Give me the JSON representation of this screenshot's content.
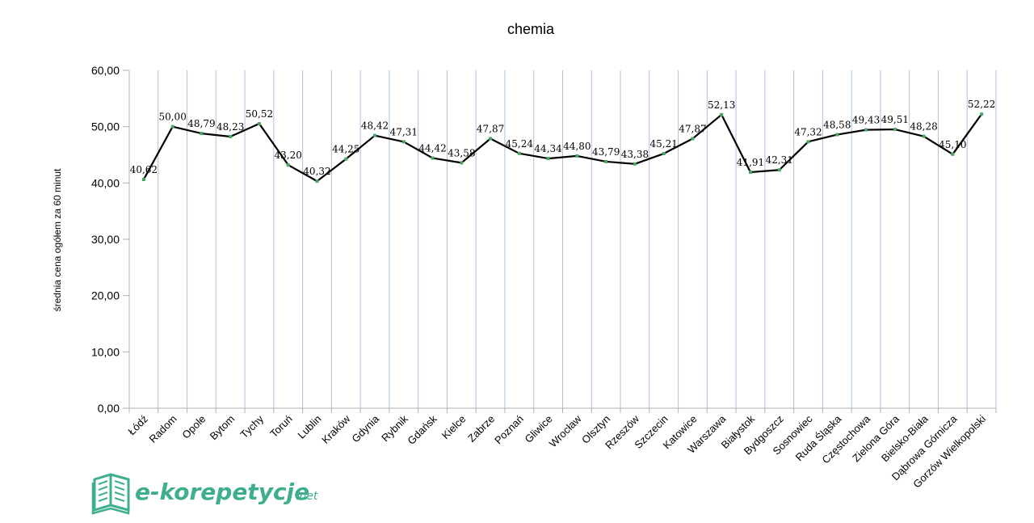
{
  "chart_data": {
    "type": "line",
    "title": "chemia",
    "ylabel": "średnia cena ogółem za 60 minut",
    "xlabel": "",
    "ylim": [
      0,
      60
    ],
    "yticks": [
      "0,00",
      "10,00",
      "20,00",
      "30,00",
      "40,00",
      "50,00",
      "60,00"
    ],
    "categories": [
      "Łódź",
      "Radom",
      "Opole",
      "Bytom",
      "Tychy",
      "Toruń",
      "Lublin",
      "Kraków",
      "Gdynia",
      "Rybnik",
      "Gdańsk",
      "Kielce",
      "Zabrze",
      "Poznań",
      "Gliwice",
      "Wrocław",
      "Olsztyn",
      "Rzeszów",
      "Szczecin",
      "Katowice",
      "Warszawa",
      "Białystok",
      "Bydgoszcz",
      "Sosnowiec",
      "Ruda Śląska",
      "Częstochowa",
      "Zielona Góra",
      "Bielsko-Biała",
      "Dąbrowa Górnicza",
      "Gorzów Wielkopolski"
    ],
    "values": [
      40.62,
      50.0,
      48.79,
      48.23,
      50.52,
      43.2,
      40.32,
      44.25,
      48.42,
      47.31,
      44.42,
      43.58,
      47.87,
      45.24,
      44.34,
      44.8,
      43.79,
      43.38,
      45.21,
      47.87,
      52.13,
      41.91,
      42.31,
      47.32,
      48.58,
      49.43,
      49.51,
      48.28,
      45.1,
      52.22
    ],
    "data_labels": [
      "40,62",
      "50,00",
      "48,79",
      "48,23",
      "50,52",
      "43,20",
      "40,32",
      "44,25",
      "48,42",
      "47,31",
      "44,42",
      "43,58",
      "47,87",
      "45,24",
      "44,34",
      "44,80",
      "43,79",
      "43,38",
      "45,21",
      "47,87",
      "52,13",
      "41,91",
      "42,31",
      "47,32",
      "48,58",
      "49,43",
      "49,51",
      "48,28",
      "45,10",
      "52,22"
    ],
    "grid": "vertical",
    "legend": "none",
    "colors": {
      "line": "#000000",
      "marker": "#4aa564",
      "grid": "#a9c1de",
      "axis": "#b3b3b3"
    }
  },
  "logo": {
    "main": "e-korepetycje",
    "suffix": ".net",
    "color": "#3fae8f"
  }
}
